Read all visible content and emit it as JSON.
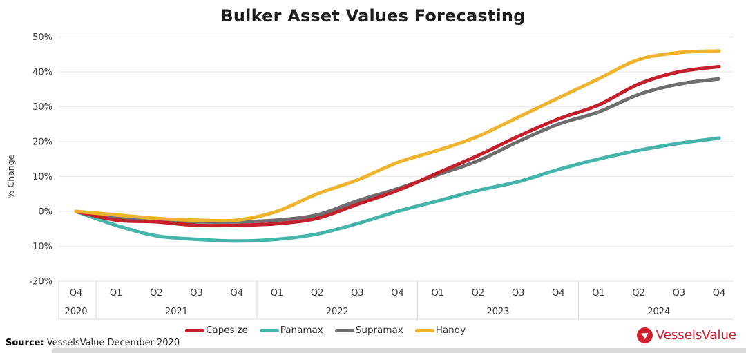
{
  "title": "Bulker Asset Values Forecasting",
  "source": {
    "label": "Source:",
    "text": "VesselsValue December 2020"
  },
  "logo": {
    "text": "VesselsValue",
    "color": "#d0202e",
    "mark_icon": "play-triangle-in-circle"
  },
  "chart_data": {
    "type": "line",
    "title": "Bulker Asset Values Forecasting",
    "xlabel": "",
    "ylabel": "% Change",
    "ylim": [
      -20,
      50
    ],
    "ytick_step": 10,
    "ytick_format": "percent",
    "grid": true,
    "legend_position": "bottom",
    "categories": [
      "Q4",
      "Q1",
      "Q2",
      "Q3",
      "Q4",
      "Q1",
      "Q2",
      "Q3",
      "Q4",
      "Q1",
      "Q2",
      "Q3",
      "Q4",
      "Q1",
      "Q2",
      "Q3",
      "Q4"
    ],
    "year_groups": [
      {
        "label": "2020",
        "span": [
          0,
          0
        ]
      },
      {
        "label": "2021",
        "span": [
          1,
          4
        ]
      },
      {
        "label": "2022",
        "span": [
          5,
          8
        ]
      },
      {
        "label": "2023",
        "span": [
          9,
          12
        ]
      },
      {
        "label": "2024",
        "span": [
          13,
          16
        ]
      }
    ],
    "series": [
      {
        "name": "Capesize",
        "color": "#c4202c",
        "values": [
          0,
          -2.5,
          -3,
          -4,
          -4,
          -3.5,
          -2,
          2,
          6,
          11,
          16,
          21.5,
          26.5,
          30.5,
          36.5,
          40,
          41.5
        ]
      },
      {
        "name": "Panamax",
        "color": "#45b4ab",
        "values": [
          0,
          -4,
          -7,
          -8,
          -8.5,
          -8,
          -6.5,
          -3.5,
          0,
          3,
          6,
          8.5,
          12,
          15,
          17.5,
          19.5,
          21
        ]
      },
      {
        "name": "Supramax",
        "color": "#6e6e6e",
        "values": [
          0,
          -2,
          -2.5,
          -3,
          -3,
          -2.5,
          -1,
          3,
          6.5,
          10.5,
          14.5,
          20,
          25,
          28.5,
          33.5,
          36.5,
          38
        ]
      },
      {
        "name": "Handy",
        "color": "#efb42e",
        "values": [
          0,
          -1,
          -2,
          -2.5,
          -2.5,
          0,
          5,
          9,
          14,
          17.5,
          21.5,
          27,
          32.5,
          38,
          43.5,
          45.5,
          46
        ]
      }
    ]
  }
}
